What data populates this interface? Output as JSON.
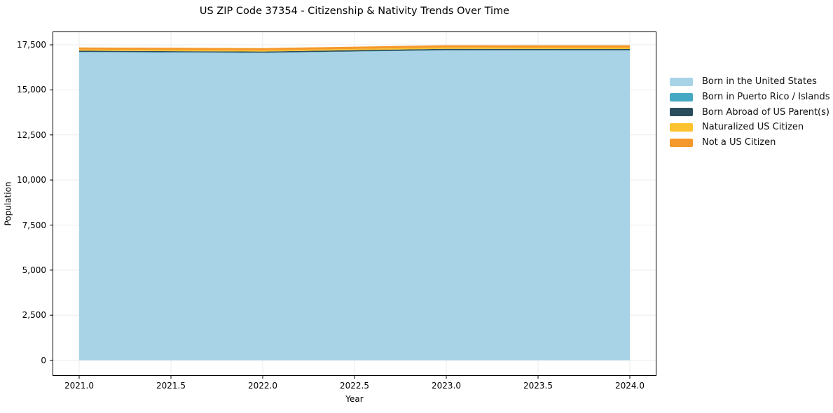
{
  "chart_data": {
    "type": "area",
    "stacked": true,
    "title": "US ZIP Code 37354 - Citizenship & Nativity Trends Over Time",
    "xlabel": "Year",
    "ylabel": "Population",
    "x": [
      2021,
      2022,
      2023,
      2024
    ],
    "series": [
      {
        "name": "Born in the United States",
        "color": "#a8d3e6",
        "values": [
          17090,
          17050,
          17190,
          17185
        ]
      },
      {
        "name": "Born in Puerto Rico / Islands",
        "color": "#45a9c4",
        "values": [
          20,
          18,
          15,
          16
        ]
      },
      {
        "name": "Born Abroad of US Parent(s)",
        "color": "#2a4d5e",
        "values": [
          65,
          60,
          75,
          70
        ]
      },
      {
        "name": "Naturalized US Citizen",
        "color": "#fdc22f",
        "values": [
          60,
          65,
          70,
          75
        ]
      },
      {
        "name": "Not a US Citizen",
        "color": "#f5992b",
        "values": [
          120,
          125,
          130,
          130
        ]
      }
    ],
    "xlim": [
      2020.855,
      2024.145
    ],
    "ylim": [
      -870,
      18240
    ],
    "xticks": {
      "values": [
        2021.0,
        2021.5,
        2022.0,
        2022.5,
        2023.0,
        2023.5,
        2024.0
      ],
      "labels": [
        "2021.0",
        "2021.5",
        "2022.0",
        "2022.5",
        "2023.0",
        "2023.5",
        "2024.0"
      ]
    },
    "yticks": {
      "values": [
        0,
        2500,
        5000,
        7500,
        10000,
        12500,
        15000,
        17500
      ],
      "labels": [
        "0",
        "2,500",
        "5,000",
        "7,500",
        "10,000",
        "12,500",
        "15,000",
        "17,500"
      ]
    },
    "grid": true,
    "legend_position": "right",
    "colors": {
      "gridline": "#ebebeb",
      "spine": "#000000",
      "background": "#ffffff"
    }
  }
}
